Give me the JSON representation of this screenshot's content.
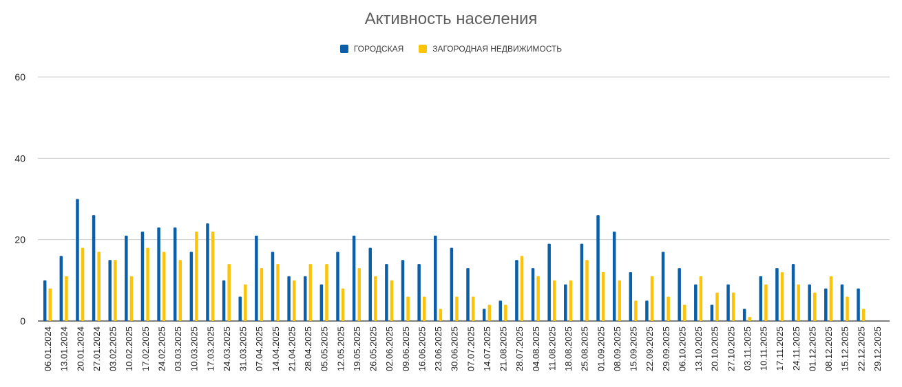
{
  "chart_data": {
    "type": "bar",
    "title": "Активность населения",
    "xlabel": "",
    "ylabel": "",
    "ylim": [
      0,
      60
    ],
    "yticks": [
      0,
      20,
      40,
      60
    ],
    "grid": true,
    "legend_position": "top-center",
    "categories": [
      "06.01.2024",
      "13.01.2024",
      "20.01.2024",
      "27.01.2024",
      "03.02.2025",
      "10.02.2025",
      "17.02.2025",
      "24.02.2025",
      "03.03.2025",
      "10.03.2025",
      "17.03.2025",
      "24.03.2025",
      "31.03.2025",
      "07.04.2025",
      "14.04.2025",
      "21.04.2025",
      "28.04.2025",
      "05.05.2025",
      "12.05.2025",
      "19.05.2025",
      "26.05.2025",
      "02.06.2025",
      "09.06.2025",
      "16.06.2025",
      "23.06.2025",
      "30.06.2025",
      "07.07.2025",
      "14.07.2025",
      "21.08.2025",
      "28.07.2025",
      "04.08.2025",
      "11.08.2025",
      "18.08.2025",
      "25.08.2025",
      "01.09.2025",
      "08.09.2025",
      "15.09.2025",
      "22.09.2025",
      "29.09.2025",
      "06.10.2025",
      "13.10.2025",
      "20.10.2025",
      "27.10.2025",
      "03.11.2025",
      "10.11.2025",
      "17.11.2025",
      "24.11.2025",
      "01.12.2025",
      "08.12.2025",
      "15.12.2025",
      "22.12.2025",
      "29.12.2025"
    ],
    "series": [
      {
        "name": "ГОРОДСКАЯ",
        "color": "#0b5ea8",
        "values": [
          10,
          16,
          30,
          26,
          15,
          21,
          22,
          23,
          23,
          17,
          24,
          10,
          6,
          21,
          17,
          11,
          11,
          9,
          17,
          21,
          18,
          14,
          15,
          14,
          21,
          18,
          13,
          3,
          5,
          15,
          13,
          19,
          9,
          19,
          26,
          22,
          12,
          5,
          17,
          13,
          9,
          4,
          9,
          3,
          11,
          13,
          14,
          9,
          8,
          9,
          8,
          null
        ]
      },
      {
        "name": "ЗАГОРОДНАЯ НЕДВИЖИМОСТЬ",
        "color": "#fbc30a",
        "values": [
          8,
          11,
          18,
          17,
          15,
          11,
          18,
          17,
          15,
          22,
          22,
          14,
          9,
          13,
          14,
          10,
          14,
          14,
          8,
          13,
          11,
          10,
          6,
          6,
          3,
          6,
          6,
          4,
          4,
          16,
          11,
          10,
          10,
          15,
          12,
          10,
          5,
          11,
          6,
          4,
          11,
          7,
          7,
          1,
          9,
          12,
          9,
          7,
          11,
          6,
          3,
          null
        ]
      }
    ]
  }
}
